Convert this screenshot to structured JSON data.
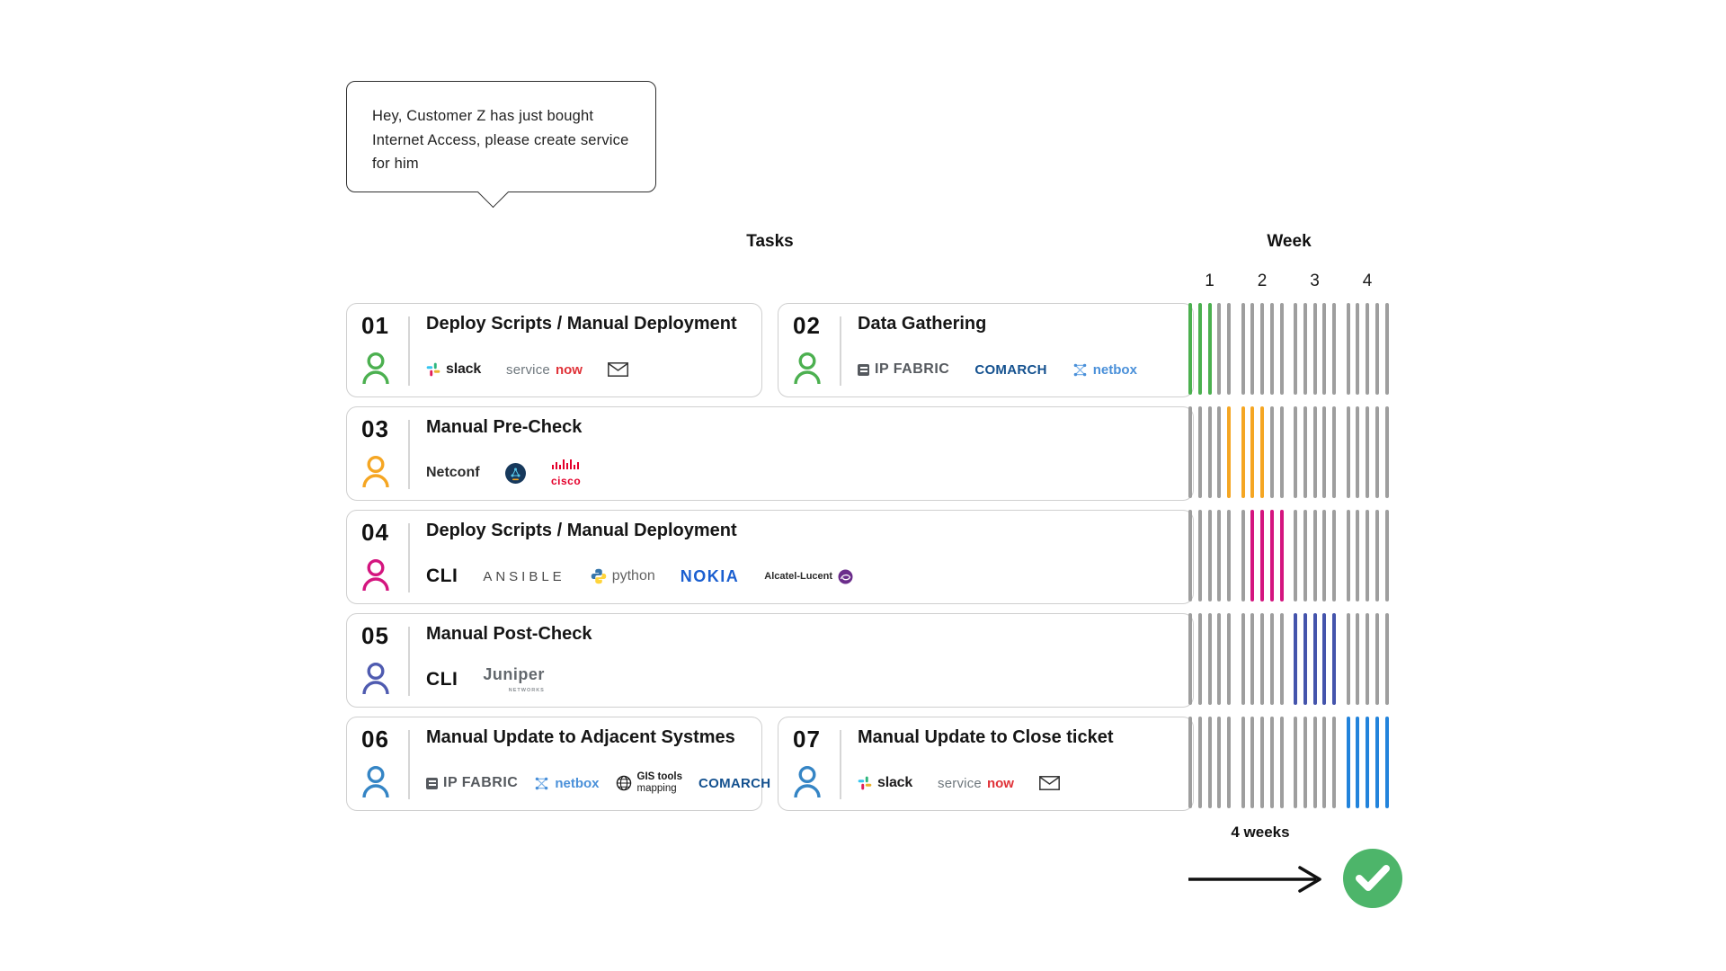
{
  "speech_bubble": {
    "text": "Hey, Customer Z has just bought Internet Access, please create service for him"
  },
  "headers": {
    "tasks": "Tasks",
    "week": "Week"
  },
  "tasks": [
    {
      "number": "01",
      "title": "Deploy Scripts / Manual Deployment",
      "color": "#4cb050"
    },
    {
      "number": "02",
      "title": "Data Gathering",
      "color": "#4cb050"
    },
    {
      "number": "03",
      "title": "Manual Pre-Check",
      "color": "#f5a623"
    },
    {
      "number": "04",
      "title": "Deploy Scripts / Manual Deployment",
      "color": "#d4157f"
    },
    {
      "number": "05",
      "title": "Manual Post-Check",
      "color": "#4f5bb0"
    },
    {
      "number": "06",
      "title": "Manual Update to Adjacent Systmes",
      "color": "#3585c5"
    },
    {
      "number": "07",
      "title": "Manual Update to Close ticket",
      "color": "#3585c5"
    }
  ],
  "logos": {
    "slack": "slack",
    "servicenow_gray": "service",
    "servicenow_red": "now",
    "ipfabric": "IP FABRIC",
    "comarch": "COMARCH",
    "netbox": "netbox",
    "netconf": "Netconf",
    "cisco": "cisco",
    "cli": "CLI",
    "ansible": "ANSIBLE",
    "python": "python",
    "nokia": "NOKIA",
    "alcatel": "Alcatel-Lucent",
    "juniper": "Juniper",
    "juniper_sub": "NETWORKS",
    "gis_line1": "GIS tools",
    "gis_line2": "mapping"
  },
  "chart_data": {
    "type": "bar",
    "title": "Week",
    "categories": [
      "1",
      "2",
      "3",
      "4"
    ],
    "bars_per_week": 5,
    "total_bars_per_row": 20,
    "inactive_color": "#9e9e9e",
    "legend_position": "none",
    "rows": [
      {
        "tasks": "01-02",
        "color": "#4cb050",
        "active_bars": [
          1,
          2,
          3
        ]
      },
      {
        "tasks": "03",
        "color": "#f5a623",
        "active_bars": [
          5,
          6,
          7,
          8
        ]
      },
      {
        "tasks": "04",
        "color": "#d4157f",
        "active_bars": [
          7,
          8,
          9,
          10
        ]
      },
      {
        "tasks": "05",
        "color": "#4454ac",
        "active_bars": [
          11,
          12,
          13,
          14,
          15
        ]
      },
      {
        "tasks": "06-07",
        "color": "#2283db",
        "active_bars": [
          16,
          17,
          18,
          19,
          20
        ]
      }
    ]
  },
  "footer": {
    "duration": "4 weeks"
  }
}
